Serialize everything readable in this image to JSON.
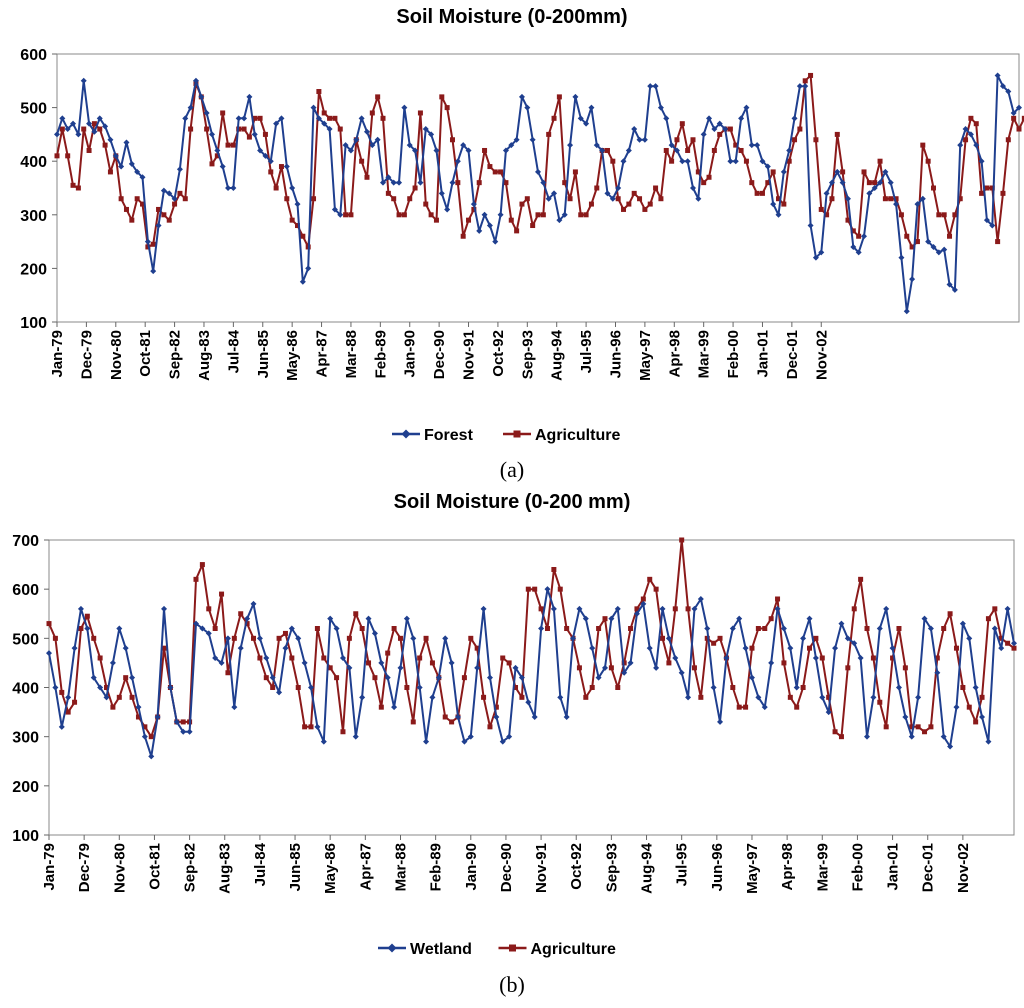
{
  "chart_data": [
    {
      "id": "a",
      "type": "line",
      "title": "Soil Moisture (0-200mm)",
      "panel_label": "(a)",
      "ylim": [
        100,
        600
      ],
      "yticks": [
        "100",
        "200",
        "300",
        "400",
        "500",
        "600"
      ],
      "xticks": [
        "Jan-79",
        "Dec-79",
        "Nov-80",
        "Oct-81",
        "Sep-82",
        "Aug-83",
        "Jul-84",
        "Jun-85",
        "May-86",
        "Apr-87",
        "Mar-88",
        "Feb-89",
        "Jan-90",
        "Dec-90",
        "Nov-91",
        "Oct-92",
        "Sep-93",
        "Aug-94",
        "Jul-95",
        "Jun-96",
        "May-97",
        "Apr-98",
        "Mar-99",
        "Feb-00",
        "Jan-01",
        "Dec-01",
        "Nov-02"
      ],
      "x_start": "Jan-79",
      "x_step_months": 2,
      "series": [
        {
          "name": "Forest",
          "color": "#1f3f8f",
          "marker": "diamond",
          "values": [
            450,
            480,
            460,
            470,
            450,
            550,
            470,
            455,
            480,
            465,
            440,
            410,
            390,
            435,
            395,
            380,
            370,
            250,
            195,
            280,
            345,
            340,
            330,
            385,
            480,
            500,
            550,
            520,
            490,
            450,
            420,
            390,
            350,
            350,
            480,
            480,
            520,
            450,
            420,
            410,
            400,
            470,
            480,
            390,
            350,
            320,
            175,
            200,
            500,
            480,
            470,
            460,
            310,
            300,
            430,
            420,
            440,
            480,
            455,
            430,
            440,
            360,
            370,
            360,
            360,
            500,
            430,
            420,
            360,
            460,
            450,
            420,
            340,
            310,
            360,
            400,
            430,
            420,
            320,
            270,
            300,
            280,
            250,
            300,
            420,
            430,
            440,
            520,
            500,
            440,
            380,
            360,
            330,
            340,
            290,
            300,
            430,
            520,
            480,
            470,
            500,
            430,
            420,
            340,
            330,
            350,
            400,
            420,
            460,
            440,
            440,
            540,
            540,
            500,
            480,
            430,
            420,
            400,
            400,
            350,
            330,
            450,
            480,
            460,
            470,
            460,
            400,
            400,
            480,
            500,
            430,
            430,
            400,
            390,
            320,
            300,
            380,
            420,
            480,
            540,
            540,
            280,
            220,
            230,
            340,
            360,
            380,
            360,
            330,
            240,
            230,
            260,
            340,
            350,
            360,
            380,
            360,
            320,
            220,
            120,
            180,
            320,
            330,
            250,
            240,
            230,
            235,
            170,
            160,
            430,
            460,
            450,
            430,
            400,
            290,
            280,
            560,
            540,
            530,
            490,
            500
          ]
        },
        {
          "name": "Agriculture",
          "color": "#8b1a1a",
          "marker": "square",
          "values": [
            410,
            460,
            410,
            355,
            350,
            460,
            420,
            470,
            460,
            430,
            380,
            410,
            330,
            310,
            290,
            330,
            320,
            240,
            245,
            310,
            300,
            290,
            320,
            340,
            330,
            460,
            545,
            520,
            460,
            395,
            410,
            490,
            430,
            430,
            460,
            460,
            445,
            480,
            480,
            450,
            380,
            350,
            390,
            330,
            290,
            280,
            260,
            240,
            330,
            530,
            490,
            480,
            480,
            460,
            300,
            300,
            440,
            400,
            370,
            490,
            520,
            480,
            340,
            330,
            300,
            300,
            330,
            350,
            490,
            320,
            300,
            290,
            520,
            500,
            440,
            360,
            260,
            290,
            310,
            360,
            420,
            390,
            380,
            380,
            360,
            290,
            270,
            320,
            330,
            280,
            300,
            300,
            450,
            480,
            520,
            360,
            330,
            380,
            300,
            300,
            320,
            350,
            420,
            420,
            400,
            330,
            310,
            320,
            340,
            330,
            310,
            320,
            350,
            330,
            420,
            400,
            440,
            470,
            420,
            440,
            380,
            360,
            370,
            420,
            450,
            460,
            460,
            430,
            420,
            400,
            360,
            340,
            340,
            360,
            380,
            330,
            320,
            400,
            440,
            460,
            550,
            560,
            440,
            310,
            300,
            330,
            450,
            380,
            290,
            270,
            260,
            380,
            360,
            360,
            400,
            330,
            330,
            330,
            300,
            260,
            240,
            250,
            430,
            400,
            350,
            300,
            300,
            260,
            300,
            330,
            440,
            480,
            470,
            340,
            350,
            350,
            250,
            340,
            440,
            480,
            460,
            480,
            500
          ]
        }
      ]
    },
    {
      "id": "b",
      "type": "line",
      "title": "Soil Moisture (0-200 mm)",
      "panel_label": "(b)",
      "ylim": [
        100,
        700
      ],
      "yticks": [
        "100",
        "200",
        "300",
        "400",
        "500",
        "600",
        "700"
      ],
      "xticks": [
        "Jan-79",
        "Dec-79",
        "Nov-80",
        "Oct-81",
        "Sep-82",
        "Aug-83",
        "Jul-84",
        "Jun-85",
        "May-86",
        "Apr-87",
        "Mar-88",
        "Feb-89",
        "Jan-90",
        "Dec-90",
        "Nov-91",
        "Oct-92",
        "Sep-93",
        "Aug-94",
        "Jul-95",
        "Jun-96",
        "May-97",
        "Apr-98",
        "Mar-99",
        "Feb-00",
        "Jan-01",
        "Dec-01",
        "Nov-02"
      ],
      "x_start": "Jan-79",
      "x_step_months": 2,
      "series": [
        {
          "name": "Wetland",
          "color": "#1f3f8f",
          "marker": "diamond",
          "values": [
            470,
            400,
            320,
            380,
            480,
            560,
            520,
            420,
            400,
            380,
            450,
            520,
            480,
            420,
            360,
            300,
            260,
            340,
            560,
            400,
            330,
            310,
            310,
            530,
            520,
            510,
            460,
            450,
            500,
            360,
            480,
            540,
            570,
            500,
            460,
            420,
            390,
            480,
            520,
            500,
            450,
            400,
            320,
            290,
            540,
            520,
            460,
            440,
            300,
            380,
            540,
            510,
            450,
            420,
            360,
            440,
            540,
            500,
            400,
            290,
            380,
            420,
            500,
            450,
            340,
            290,
            300,
            440,
            560,
            420,
            340,
            290,
            300,
            440,
            420,
            370,
            340,
            520,
            600,
            560,
            380,
            340,
            500,
            560,
            540,
            480,
            420,
            440,
            540,
            560,
            430,
            450,
            550,
            570,
            480,
            440,
            560,
            500,
            460,
            430,
            380,
            560,
            580,
            520,
            400,
            330,
            460,
            520,
            540,
            480,
            420,
            380,
            360,
            450,
            560,
            520,
            480,
            400,
            500,
            540,
            460,
            380,
            350,
            480,
            530,
            500,
            490,
            460,
            300,
            380,
            520,
            560,
            480,
            400,
            340,
            300,
            380,
            540,
            520,
            430,
            300,
            280,
            360,
            530,
            500,
            400,
            340,
            290,
            520,
            480,
            560,
            490
          ]
        },
        {
          "name": "Agriculture",
          "color": "#8b1a1a",
          "marker": "square",
          "values": [
            530,
            500,
            390,
            350,
            370,
            520,
            545,
            500,
            460,
            400,
            360,
            380,
            420,
            380,
            340,
            320,
            300,
            340,
            480,
            400,
            330,
            330,
            330,
            620,
            650,
            560,
            520,
            590,
            430,
            500,
            550,
            530,
            500,
            460,
            420,
            400,
            500,
            510,
            460,
            400,
            320,
            320,
            520,
            460,
            440,
            420,
            310,
            500,
            550,
            520,
            450,
            420,
            360,
            470,
            520,
            500,
            400,
            330,
            460,
            500,
            450,
            420,
            340,
            330,
            340,
            420,
            500,
            480,
            380,
            320,
            360,
            460,
            450,
            400,
            380,
            600,
            600,
            560,
            520,
            640,
            600,
            520,
            500,
            440,
            380,
            400,
            520,
            540,
            440,
            400,
            450,
            520,
            560,
            580,
            620,
            600,
            500,
            450,
            560,
            700,
            560,
            440,
            380,
            500,
            490,
            500,
            460,
            400,
            360,
            360,
            480,
            520,
            520,
            540,
            580,
            450,
            380,
            360,
            400,
            480,
            500,
            460,
            380,
            310,
            300,
            440,
            560,
            620,
            520,
            460,
            370,
            320,
            460,
            520,
            440,
            320,
            320,
            310,
            320,
            460,
            520,
            550,
            480,
            400,
            360,
            330,
            380,
            540,
            560,
            500,
            490,
            480
          ]
        }
      ]
    }
  ]
}
